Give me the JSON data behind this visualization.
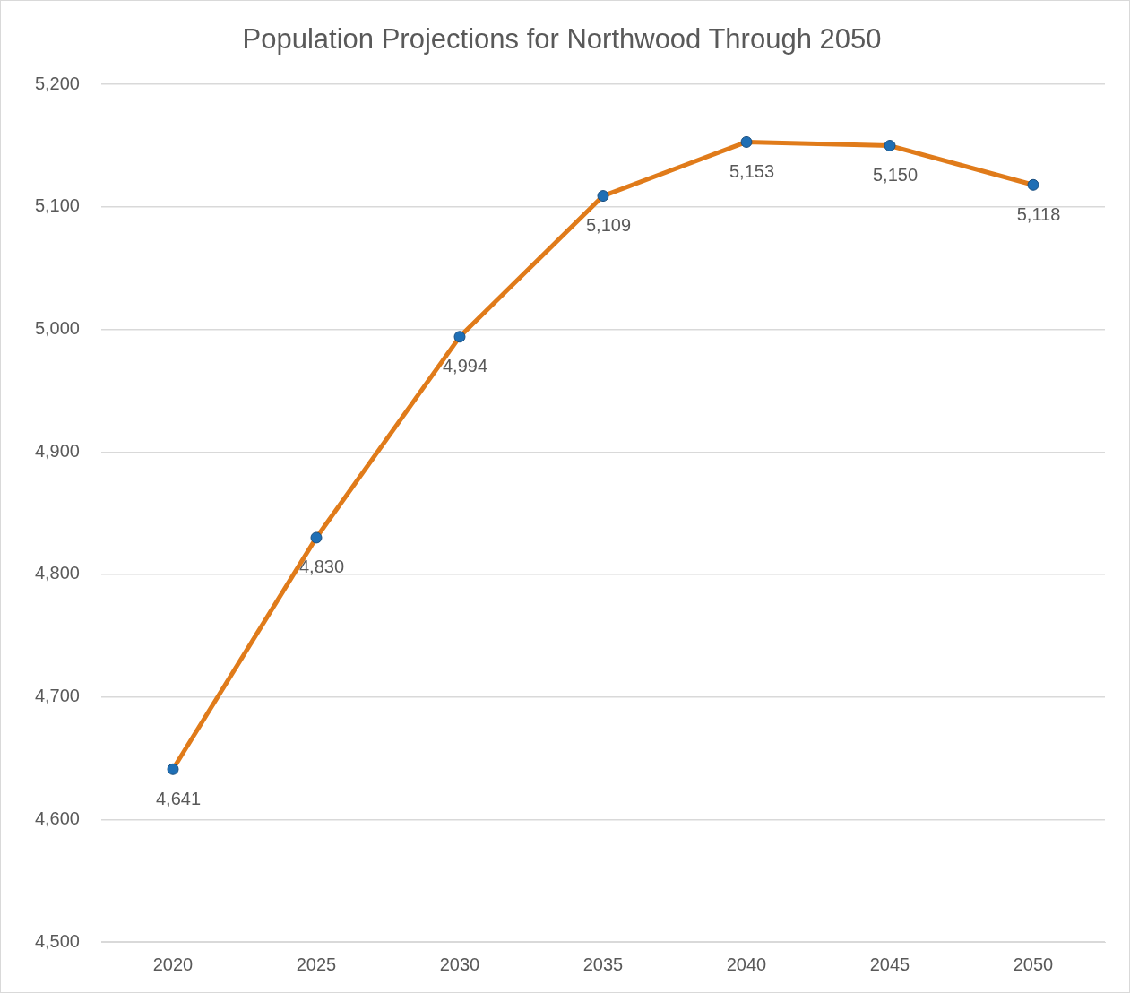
{
  "chart_data": {
    "type": "line",
    "title": "Population Projections for Northwood Through 2050",
    "categories": [
      "2020",
      "2025",
      "2030",
      "2035",
      "2040",
      "2045",
      "2050"
    ],
    "series": [
      {
        "color": "#e07b1a",
        "colors": [
          "#1f6fb5",
          "#1f6fb5",
          "#1f6fb5",
          "#1f6fb5",
          "#1f6fb5",
          "#1f6fb5",
          "#1f6fb5"
        ],
        "values": [
          4641,
          4830,
          4994,
          5109,
          5153,
          5150,
          5118
        ],
        "value_labels": [
          "4,641",
          "4,830",
          "4,994",
          "5,109",
          "5,153",
          "5,150",
          "5,118"
        ]
      }
    ],
    "ylim": [
      4500,
      5200
    ],
    "yticks": [
      {
        "value": 4500,
        "label": "4,500"
      },
      {
        "value": 4600,
        "label": "4,600"
      },
      {
        "value": 4700,
        "label": "4,700"
      },
      {
        "value": 4800,
        "label": "4,800"
      },
      {
        "value": 4900,
        "label": "4,900"
      },
      {
        "value": 5000,
        "label": "5,000"
      },
      {
        "value": 5100,
        "label": "5,100"
      },
      {
        "value": 5200,
        "label": "5,200"
      }
    ],
    "grid": "y",
    "legend": false,
    "marker": "circle",
    "line_style": "solid"
  }
}
